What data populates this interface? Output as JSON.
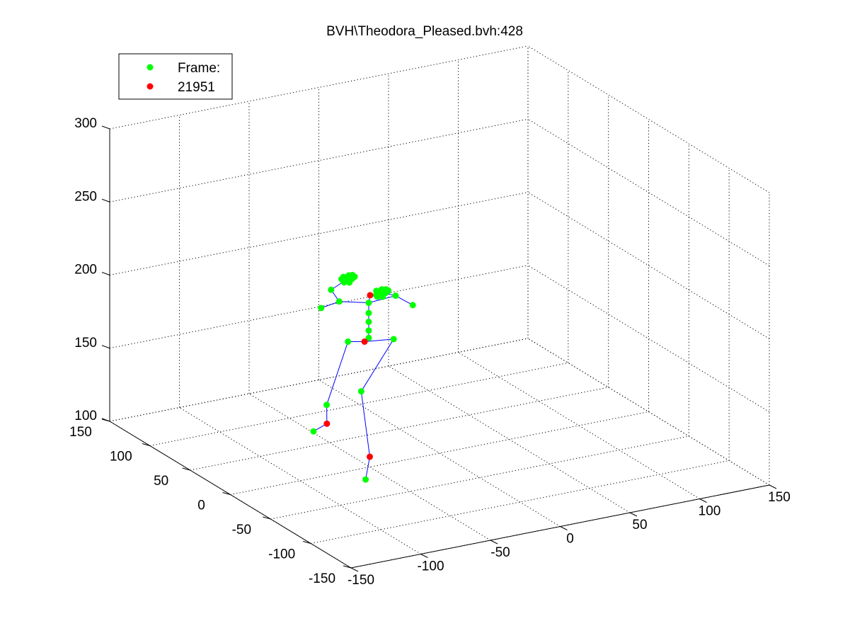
{
  "chart_data": {
    "type": "scatter",
    "projection": "3d",
    "title": "BVH\\Theodora_Pleased.bvh:428",
    "xlabel": "",
    "ylabel": "",
    "zlabel": "",
    "xlim": [
      -150,
      150
    ],
    "ylim": [
      -150,
      150
    ],
    "zlim": [
      100,
      300
    ],
    "xticks": [
      "-150",
      "-100",
      "-50",
      "0",
      "50",
      "100",
      "150"
    ],
    "yticks": [
      "-150",
      "-100",
      "-50",
      "0",
      "50",
      "100",
      "150"
    ],
    "zticks": [
      "100",
      "150",
      "200",
      "250",
      "300"
    ],
    "grid": true,
    "legend_position": "top-left",
    "legend": [
      {
        "label": "Frame:",
        "color": "#00ff00"
      },
      {
        "label": "21951",
        "color": "#ff0000"
      }
    ],
    "colors": {
      "joint": "#00ff00",
      "highlight": "#ff0000",
      "bone": "#0000ff"
    },
    "series": [
      {
        "points": [
          {
            "id": "foot_r",
            "x": -53,
            "y": 0,
            "z": 92,
            "color": "#00ff00"
          },
          {
            "id": "ankle_r",
            "x": -50,
            "y": 0,
            "z": 107,
            "color": "#ff0000"
          },
          {
            "id": "toe_l",
            "x": -80,
            "y": 18,
            "z": 124,
            "color": "#00ff00"
          },
          {
            "id": "ankle_l",
            "x": -75,
            "y": 10,
            "z": 131,
            "color": "#ff0000"
          },
          {
            "id": "knee_l",
            "x": -74,
            "y": 12,
            "z": 143,
            "color": "#00ff00"
          },
          {
            "id": "knee_r",
            "x": -55,
            "y": 2,
            "z": 152,
            "color": "#00ff00"
          },
          {
            "id": "hip_l",
            "x": -57,
            "y": 15,
            "z": 182,
            "color": "#00ff00"
          },
          {
            "id": "root",
            "x": -48,
            "y": 10,
            "z": 182,
            "color": "#ff0000"
          },
          {
            "id": "hip_r",
            "x": -30,
            "y": 5,
            "z": 182,
            "color": "#00ff00"
          },
          {
            "id": "spine1",
            "x": -45,
            "y": 10,
            "z": 184,
            "color": "#00ff00"
          },
          {
            "id": "spine2",
            "x": -45,
            "y": 10,
            "z": 189,
            "color": "#00ff00"
          },
          {
            "id": "spine3",
            "x": -45,
            "y": 10,
            "z": 195,
            "color": "#00ff00"
          },
          {
            "id": "neck",
            "x": -45,
            "y": 10,
            "z": 201,
            "color": "#00ff00"
          },
          {
            "id": "chest",
            "x": -45,
            "y": 10,
            "z": 208,
            "color": "#00ff00"
          },
          {
            "id": "head",
            "x": -44,
            "y": 10,
            "z": 213,
            "color": "#ff0000"
          },
          {
            "id": "shoulder_l",
            "x": -65,
            "y": 12,
            "z": 212,
            "color": "#00ff00"
          },
          {
            "id": "elbow_l",
            "x": -72,
            "y": 10,
            "z": 222,
            "color": "#00ff00"
          },
          {
            "id": "wrist_l",
            "x": -78,
            "y": 12,
            "z": 210,
            "color": "#00ff00"
          },
          {
            "id": "shoulder_r",
            "x": -28,
            "y": 6,
            "z": 211,
            "color": "#00ff00"
          },
          {
            "id": "elbow_r",
            "x": -18,
            "y": 2,
            "z": 204,
            "color": "#00ff00"
          },
          {
            "id": "hand_l",
            "x": -63,
            "y": 4,
            "z": 230,
            "color": "#00ff00"
          },
          {
            "id": "hand_r",
            "x": -38,
            "y": 6,
            "z": 215,
            "color": "#00ff00"
          }
        ],
        "bones": [
          [
            "foot_r",
            "ankle_r"
          ],
          [
            "ankle_r",
            "knee_r"
          ],
          [
            "knee_r",
            "hip_r"
          ],
          [
            "hip_r",
            "root"
          ],
          [
            "toe_l",
            "ankle_l"
          ],
          [
            "ankle_l",
            "knee_l"
          ],
          [
            "knee_l",
            "hip_l"
          ],
          [
            "hip_l",
            "root"
          ],
          [
            "root",
            "spine1"
          ],
          [
            "spine1",
            "spine2"
          ],
          [
            "spine2",
            "spine3"
          ],
          [
            "spine3",
            "neck"
          ],
          [
            "neck",
            "chest"
          ],
          [
            "chest",
            "head"
          ],
          [
            "chest",
            "shoulder_l"
          ],
          [
            "shoulder_l",
            "wrist_l"
          ],
          [
            "shoulder_l",
            "elbow_l"
          ],
          [
            "elbow_l",
            "hand_l"
          ],
          [
            "chest",
            "shoulder_r"
          ],
          [
            "shoulder_r",
            "elbow_r"
          ],
          [
            "shoulder_r",
            "hand_r"
          ]
        ],
        "clusters": [
          {
            "id": "hand_l_fingers",
            "x": -63,
            "y": 4,
            "z": 230,
            "spread": 5,
            "count": 18,
            "color": "#00ff00"
          },
          {
            "id": "hand_r_fingers",
            "x": -38,
            "y": 6,
            "z": 215,
            "spread": 5,
            "count": 16,
            "color": "#00ff00"
          }
        ]
      }
    ]
  }
}
